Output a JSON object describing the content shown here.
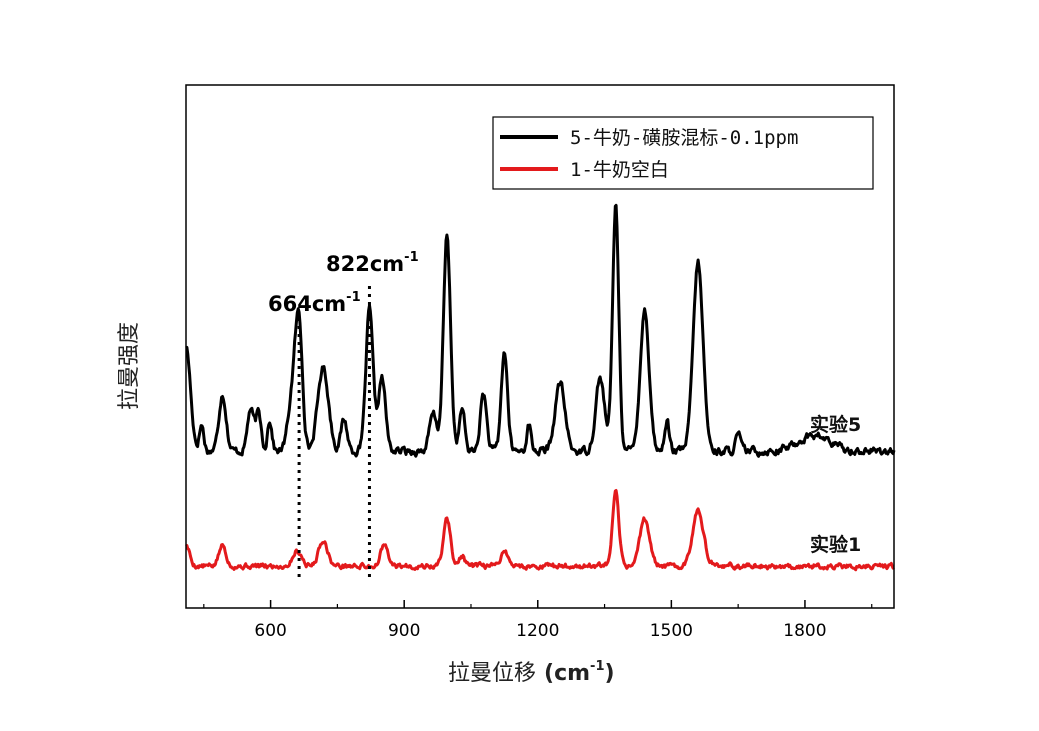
{
  "chart_data": {
    "type": "line",
    "title": "",
    "xlabel": "拉曼位移",
    "xlabel_unit": "(cm",
    "xlabel_unit_sup": "-1",
    "xlabel_unit_close": ")",
    "ylabel": "拉曼强度",
    "xlim": [
      410,
      2000
    ],
    "ylim": [
      0,
      1
    ],
    "x_ticks": [
      600,
      900,
      1200,
      1500,
      1800
    ],
    "x_tick_labels": [
      "600",
      "900",
      "1200",
      "1500",
      "1800"
    ],
    "grid": false,
    "legend_position": "top-right",
    "series": [
      {
        "name": "5-牛奶-磺胺混标-0.1ppm",
        "label": "实验5",
        "color": "#000000",
        "baseline": 0.3,
        "peaks": [
          [
            410,
            0.2,
            10
          ],
          [
            445,
            0.05,
            5
          ],
          [
            492,
            0.11,
            8
          ],
          [
            555,
            0.08,
            7
          ],
          [
            573,
            0.07,
            6
          ],
          [
            598,
            0.06,
            5
          ],
          [
            650,
            0.11,
            10
          ],
          [
            664,
            0.22,
            8
          ],
          [
            718,
            0.16,
            12
          ],
          [
            765,
            0.06,
            7
          ],
          [
            822,
            0.27,
            8
          ],
          [
            850,
            0.14,
            8
          ],
          [
            965,
            0.07,
            8
          ],
          [
            996,
            0.41,
            8
          ],
          [
            1030,
            0.08,
            6
          ],
          [
            1078,
            0.11,
            7
          ],
          [
            1125,
            0.19,
            7
          ],
          [
            1180,
            0.05,
            5
          ],
          [
            1250,
            0.13,
            11
          ],
          [
            1340,
            0.14,
            10
          ],
          [
            1375,
            0.47,
            7
          ],
          [
            1440,
            0.27,
            10
          ],
          [
            1490,
            0.06,
            5
          ],
          [
            1560,
            0.36,
            11
          ],
          [
            1650,
            0.03,
            6
          ],
          [
            1820,
            0.03,
            35
          ]
        ],
        "noise": 0.012,
        "seed": 17
      },
      {
        "name": "1-牛奶空白",
        "label": "实验1",
        "color": "#e31a1c",
        "baseline": 0.08,
        "peaks": [
          [
            410,
            0.04,
            8
          ],
          [
            492,
            0.04,
            8
          ],
          [
            660,
            0.03,
            10
          ],
          [
            718,
            0.05,
            10
          ],
          [
            855,
            0.04,
            8
          ],
          [
            996,
            0.09,
            8
          ],
          [
            1030,
            0.02,
            6
          ],
          [
            1125,
            0.03,
            8
          ],
          [
            1375,
            0.14,
            7
          ],
          [
            1440,
            0.09,
            11
          ],
          [
            1560,
            0.11,
            12
          ]
        ],
        "noise": 0.008,
        "seed": 5
      }
    ],
    "annotations": [
      {
        "label": "664cm",
        "sup": "-1",
        "x": 664
      },
      {
        "label": "822cm",
        "sup": "-1",
        "x": 822
      }
    ]
  }
}
